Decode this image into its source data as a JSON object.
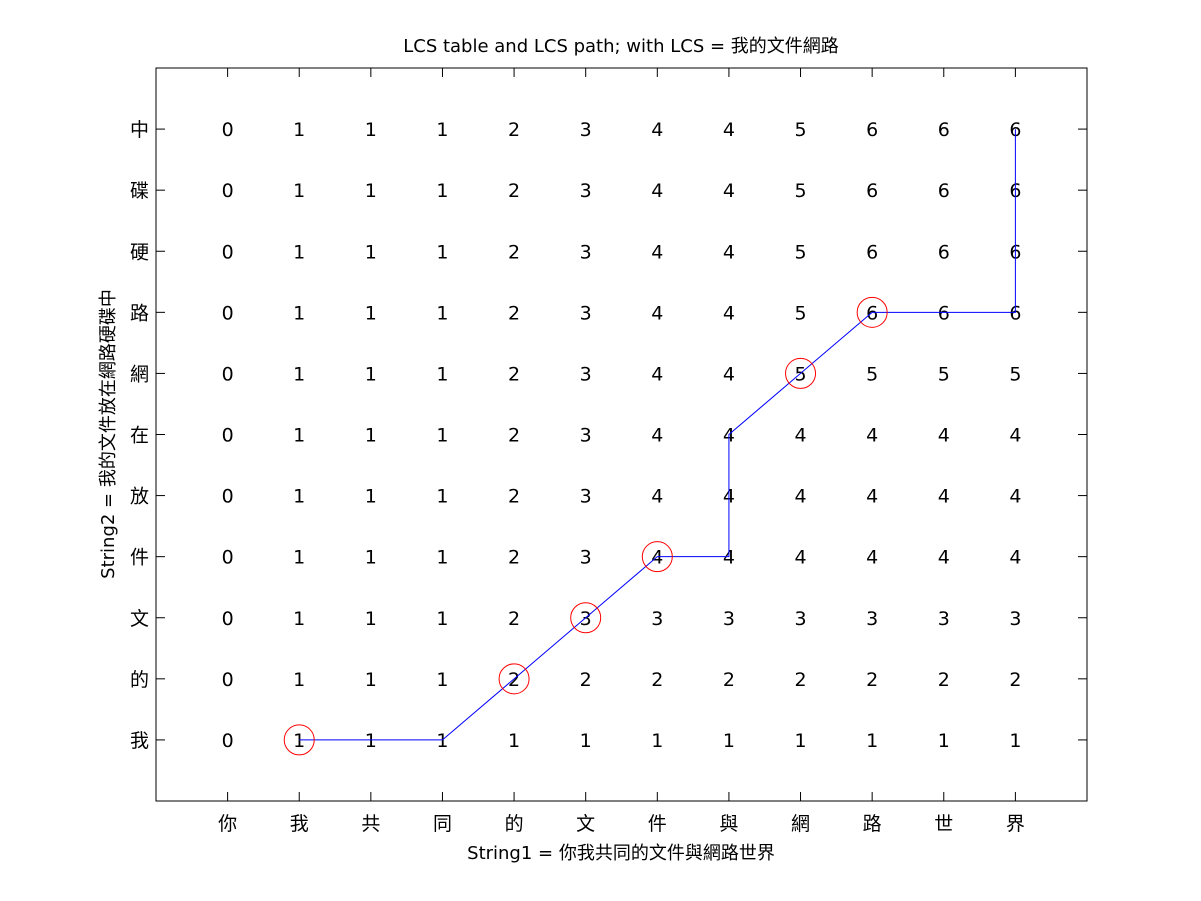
{
  "chart_data": {
    "type": "table",
    "title": "LCS table and LCS path; with LCS = 我的文件網路",
    "xlabel": "String1 = 你我共同的文件與網路世界",
    "ylabel": "String2 = 我的文件放在網路硬碟中",
    "x_tick_labels": [
      "你",
      "我",
      "共",
      "同",
      "的",
      "文",
      "件",
      "與",
      "網",
      "路",
      "世",
      "界"
    ],
    "y_tick_labels": [
      "我",
      "的",
      "文",
      "件",
      "放",
      "在",
      "網",
      "路",
      "硬",
      "碟",
      "中"
    ],
    "xlim": [
      0,
      13
    ],
    "ylim": [
      0,
      12
    ],
    "table": [
      [
        0,
        1,
        1,
        1,
        1,
        1,
        1,
        1,
        1,
        1,
        1,
        1
      ],
      [
        0,
        1,
        1,
        1,
        2,
        2,
        2,
        2,
        2,
        2,
        2,
        2
      ],
      [
        0,
        1,
        1,
        1,
        2,
        3,
        3,
        3,
        3,
        3,
        3,
        3
      ],
      [
        0,
        1,
        1,
        1,
        2,
        3,
        4,
        4,
        4,
        4,
        4,
        4
      ],
      [
        0,
        1,
        1,
        1,
        2,
        3,
        4,
        4,
        4,
        4,
        4,
        4
      ],
      [
        0,
        1,
        1,
        1,
        2,
        3,
        4,
        4,
        4,
        4,
        4,
        4
      ],
      [
        0,
        1,
        1,
        1,
        2,
        3,
        4,
        4,
        5,
        5,
        5,
        5
      ],
      [
        0,
        1,
        1,
        1,
        2,
        3,
        4,
        4,
        5,
        6,
        6,
        6
      ],
      [
        0,
        1,
        1,
        1,
        2,
        3,
        4,
        4,
        5,
        6,
        6,
        6
      ],
      [
        0,
        1,
        1,
        1,
        2,
        3,
        4,
        4,
        5,
        6,
        6,
        6
      ],
      [
        0,
        1,
        1,
        1,
        2,
        3,
        4,
        4,
        5,
        6,
        6,
        6
      ]
    ],
    "path": [
      [
        2,
        1
      ],
      [
        3,
        1
      ],
      [
        4,
        1
      ],
      [
        5,
        2
      ],
      [
        6,
        3
      ],
      [
        7,
        4
      ],
      [
        8,
        4
      ],
      [
        8,
        5
      ],
      [
        8,
        6
      ],
      [
        9,
        7
      ],
      [
        10,
        8
      ],
      [
        11,
        8
      ],
      [
        12,
        8
      ],
      [
        12,
        9
      ],
      [
        12,
        10
      ],
      [
        12,
        11
      ]
    ],
    "matches": [
      [
        2,
        1
      ],
      [
        5,
        2
      ],
      [
        6,
        3
      ],
      [
        7,
        4
      ],
      [
        9,
        7
      ],
      [
        10,
        8
      ]
    ],
    "path_color": "#0000ff",
    "match_color": "#ff0000",
    "grid": false
  }
}
